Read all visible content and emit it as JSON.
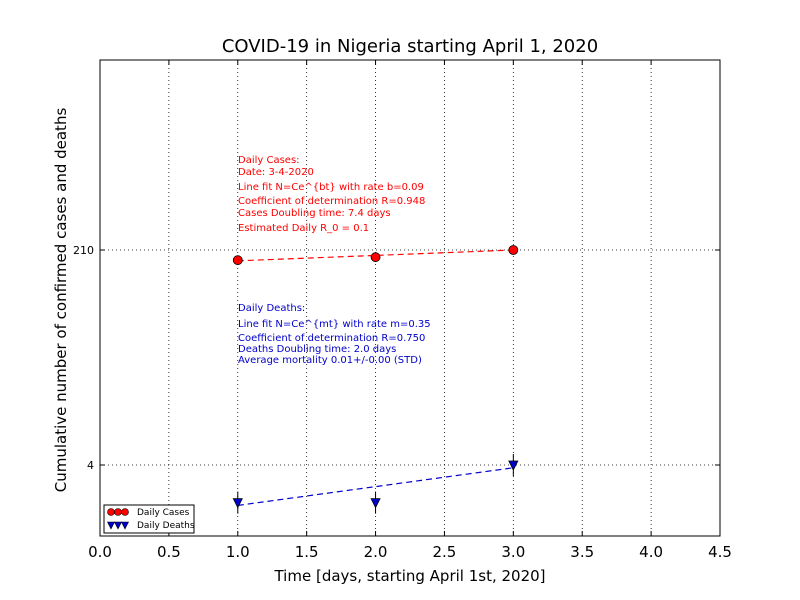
{
  "chart_data": {
    "type": "line",
    "title": "COVID-19 in Nigeria starting April 1, 2020",
    "xlabel": "Time [days, starting April 1st, 2020]",
    "ylabel": "Cumulative number of confirmed cases and deaths",
    "xlim": [
      0.0,
      4.5
    ],
    "x_ticks": [
      "0.0",
      "0.5",
      "1.0",
      "1.5",
      "2.0",
      "2.5",
      "3.0",
      "3.5",
      "4.0",
      "4.5"
    ],
    "y_scale": "log",
    "y_ticks": [
      "4",
      "210"
    ],
    "grid": true,
    "legend_position": "lower-left",
    "series": [
      {
        "name": "Daily Cases",
        "color": "#ff0000",
        "marker": "circle",
        "x": [
          1,
          2,
          3
        ],
        "y": [
          174,
          184,
          210
        ],
        "fit": {
          "x": [
            1,
            3
          ],
          "y": [
            172,
            210
          ]
        }
      },
      {
        "name": "Daily Deaths",
        "color": "#0000cc",
        "marker": "triangle-down",
        "x": [
          1,
          2,
          3
        ],
        "y": [
          2,
          2,
          4
        ],
        "fit": {
          "x": [
            1,
            3
          ],
          "y": [
            1.9,
            3.8
          ]
        }
      }
    ],
    "annotations": {
      "cases": [
        "Daily Cases:",
        "Date: 3-4-2020",
        "Line fit N=Ce^{bt} with rate b=0.09",
        "Coefficient of determination R=0.948",
        "Cases Doubling time: 7.4 days",
        "Estimated Daily R_0 = 0.1"
      ],
      "deaths": [
        "Daily Deaths:",
        "Line fit N=Ce^{mt} with rate m=0.35",
        "Coefficient of determination R=0.750",
        "Deaths Doubling time: 2.0 days",
        "Average mortality 0.01+/-0.00 (STD)"
      ]
    }
  }
}
